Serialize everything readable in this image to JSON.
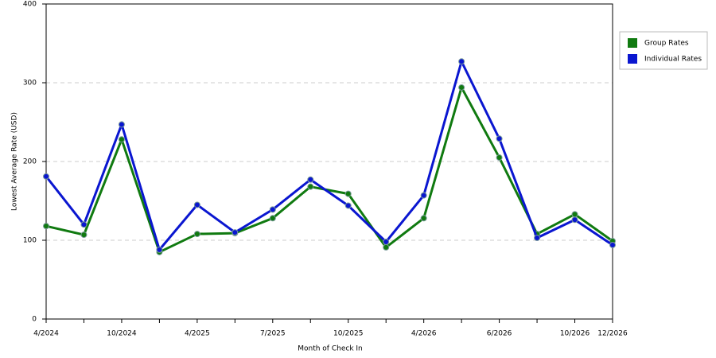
{
  "chart_data": {
    "type": "line",
    "x_label": "Month of Check In",
    "y_label": "Lowest Average Rate (USD)",
    "categories": [
      "4/2024",
      null,
      "10/2024",
      null,
      "4/2025",
      null,
      "7/2025",
      null,
      "10/2025",
      null,
      "4/2026",
      null,
      "6/2026",
      null,
      "10/2026",
      "12/2026"
    ],
    "series": [
      {
        "name": "Group Rates",
        "color": "#107a10",
        "values": [
          118,
          107,
          228,
          85,
          108,
          109,
          128,
          168,
          159,
          91,
          128,
          294,
          205,
          108,
          133,
          99
        ]
      },
      {
        "name": "Individual Rates",
        "color": "#0a16d0",
        "values": [
          181,
          120,
          247,
          88,
          145,
          110,
          139,
          177,
          144,
          98,
          157,
          327,
          229,
          103,
          126,
          94
        ]
      }
    ],
    "ylim": [
      0,
      400
    ],
    "yticks": [
      0,
      100,
      200,
      300,
      400
    ],
    "grid": true,
    "legend": "right"
  }
}
